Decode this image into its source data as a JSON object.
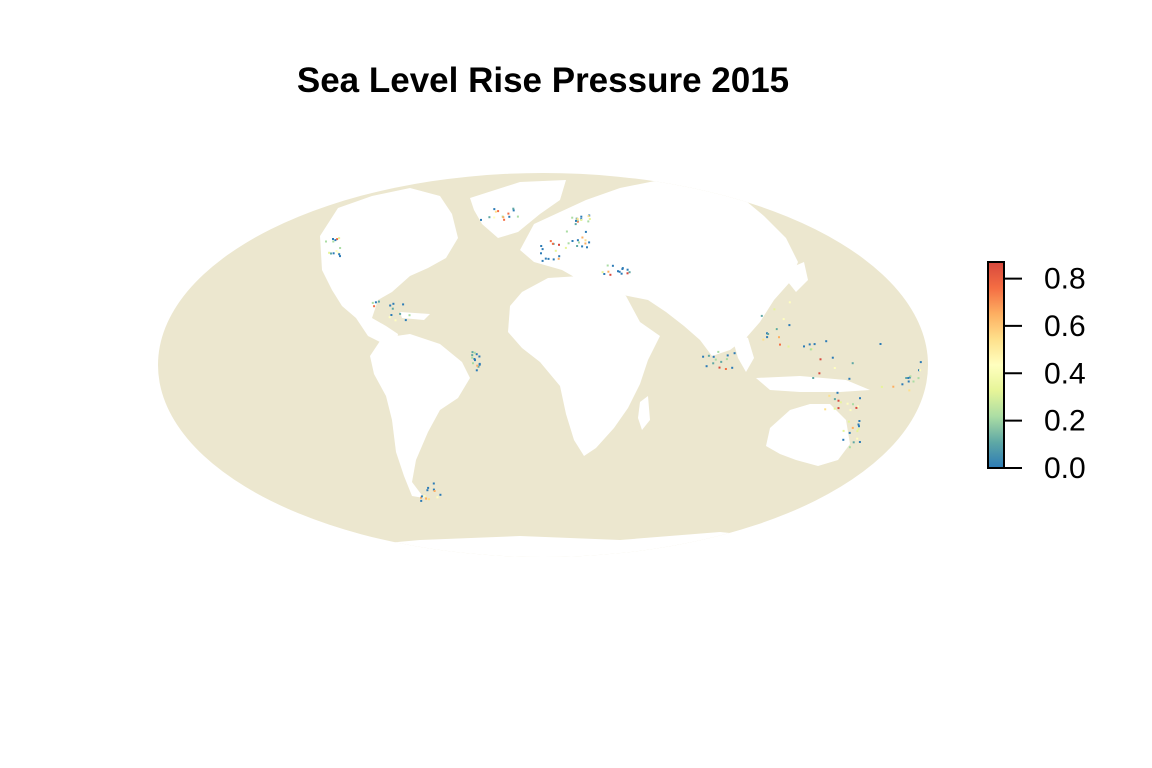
{
  "title": "Sea Level Rise Pressure 2015",
  "colors": {
    "ocean": "#ece7cf",
    "land": "#ffffff",
    "ramp": [
      "#2c7bb6",
      "#5fa8a5",
      "#abdda4",
      "#e6f598",
      "#ffffbf",
      "#fee08b",
      "#fdae61",
      "#f46d43",
      "#d7483d"
    ]
  },
  "map": {
    "projection": "Mollweide",
    "value_range": [
      0,
      0.87
    ]
  },
  "legend": {
    "ticks": [
      "0.0",
      "0.2",
      "0.4",
      "0.6",
      "0.8"
    ],
    "tick_values": [
      0,
      0.2,
      0.4,
      0.6,
      0.8
    ],
    "max": 0.87
  }
}
